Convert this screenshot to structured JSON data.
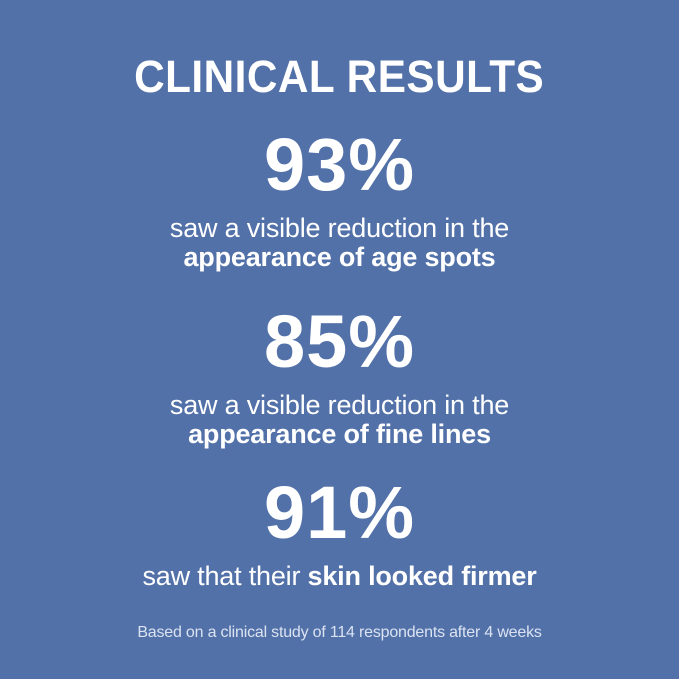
{
  "infographic": {
    "title": "CLINICAL RESULTS",
    "stats": [
      {
        "value": "93%",
        "desc_regular": "saw a visible reduction in the",
        "desc_bold": "appearance of age spots"
      },
      {
        "value": "85%",
        "desc_regular": "saw a visible reduction in the",
        "desc_bold": "appearance of fine lines"
      },
      {
        "value": "91%",
        "desc_regular": "saw that their",
        "desc_bold": "skin looked firmer"
      }
    ],
    "footnote": "Based on a clinical study of 114 respondents after 4 weeks",
    "colors": {
      "background": "#5271a8",
      "text": "#ffffff",
      "footnote_text": "#dbe3f2"
    }
  }
}
